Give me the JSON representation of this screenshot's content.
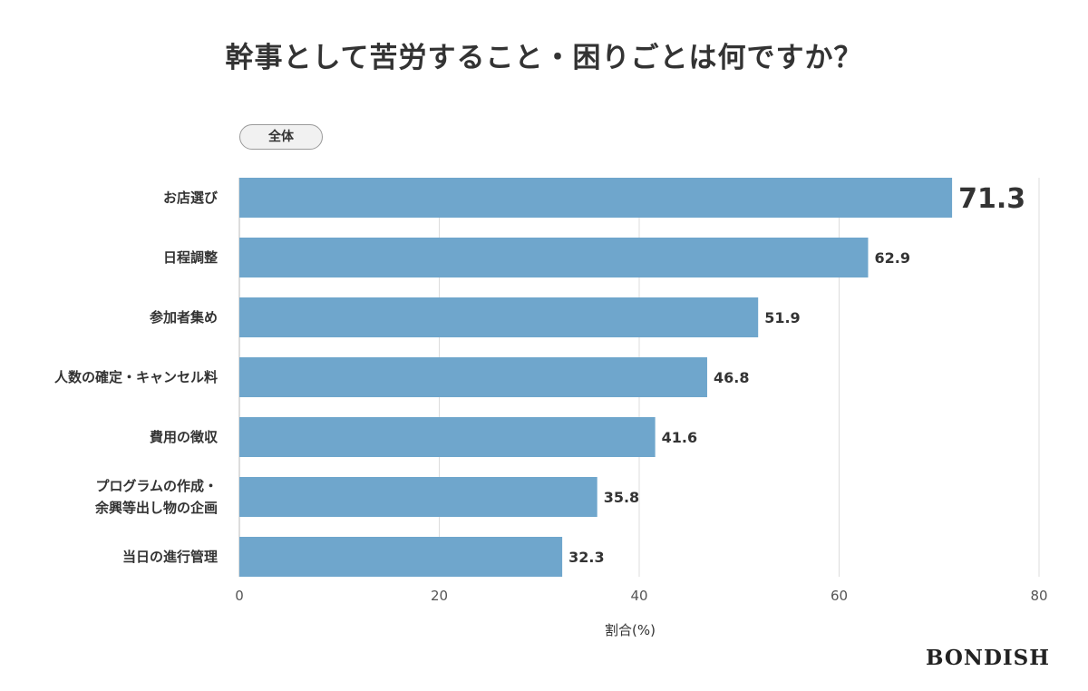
{
  "chart_data": {
    "type": "bar",
    "orientation": "horizontal",
    "title": "幹事として苦労すること・困りごとは何ですか？",
    "filter_label": "全体",
    "categories": [
      [
        "お店選び"
      ],
      [
        "日程調整"
      ],
      [
        "参加者集め"
      ],
      [
        "人数の確定・キャンセル料"
      ],
      [
        "費用の徴収"
      ],
      [
        "プログラムの作成・",
        "余興等出し物の企画"
      ],
      [
        "当日の進行管理"
      ]
    ],
    "values": [
      71.3,
      62.9,
      51.9,
      46.8,
      41.6,
      35.8,
      32.3
    ],
    "value_labels": [
      "71.3",
      "62.9",
      "51.9",
      "46.8",
      "41.6",
      "35.8",
      "32.3"
    ],
    "xlabel": "割合(%)",
    "ylabel": "",
    "xlim": [
      0,
      80
    ],
    "xticks": [
      0,
      20,
      40,
      60,
      80
    ],
    "grid": true,
    "colors": {
      "bar": "#6fa6cc",
      "grid": "#dddddd",
      "text": "#333333"
    }
  },
  "brand": "BONDISH"
}
